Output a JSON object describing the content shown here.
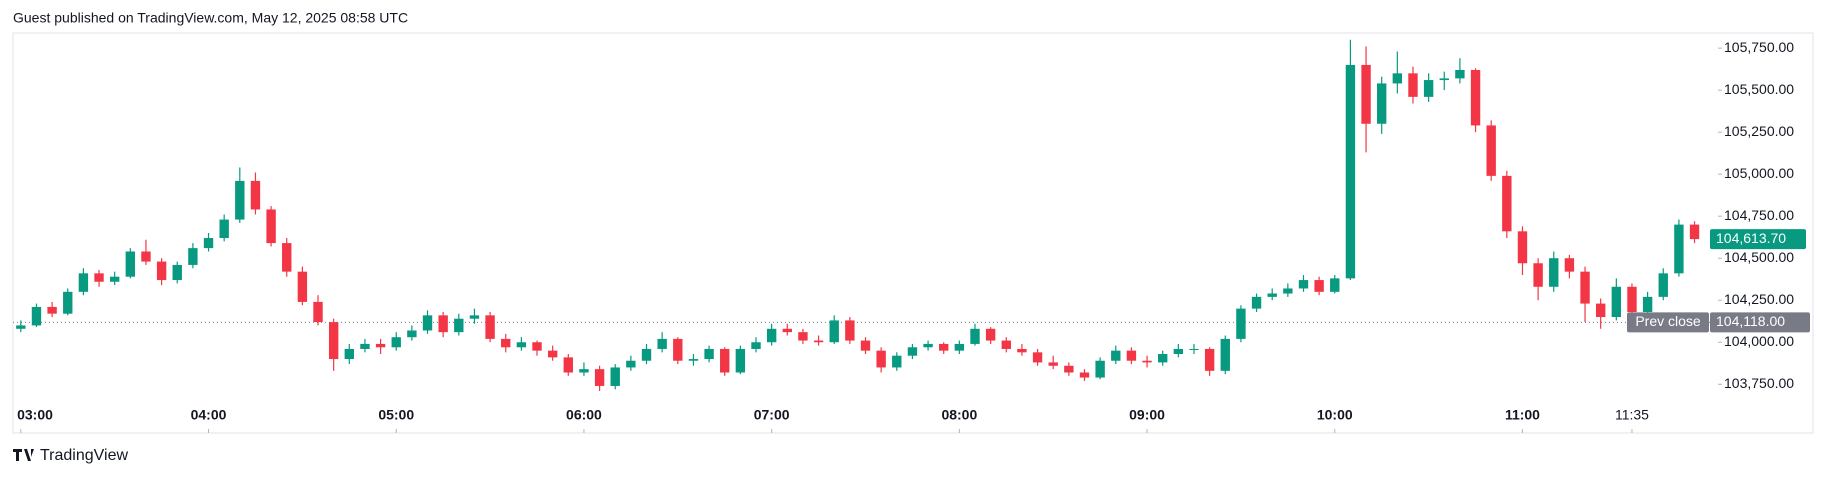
{
  "chart_data": {
    "type": "candlestick",
    "title": "Guest published on TradingView.com, May 12, 2025 08:58 UTC",
    "source": "TradingView",
    "up_color": "#089981",
    "down_color": "#f23645",
    "xlim": [
      -0.5,
      108.5
    ],
    "xticks": [
      {
        "value": 0,
        "label": "03:00"
      },
      {
        "value": 12,
        "label": "04:00"
      },
      {
        "value": 24,
        "label": "05:00"
      },
      {
        "value": 36,
        "label": "06:00"
      },
      {
        "value": 48,
        "label": "07:00"
      },
      {
        "value": 60,
        "label": "08:00"
      },
      {
        "value": 72,
        "label": "09:00"
      },
      {
        "value": 84,
        "label": "10:00"
      },
      {
        "value": 96,
        "label": "11:00"
      },
      {
        "value": 103,
        "label": "11:35"
      }
    ],
    "ylim": [
      103460,
      105840
    ],
    "yticks": [
      {
        "value": 103750,
        "label": "103,750.00"
      },
      {
        "value": 104000,
        "label": "104,000.00"
      },
      {
        "value": 104250,
        "label": "104,250.00"
      },
      {
        "value": 104500,
        "label": "104,500.00"
      },
      {
        "value": 104750,
        "label": "104,750.00"
      },
      {
        "value": 105000,
        "label": "105,000.00"
      },
      {
        "value": 105250,
        "label": "105,250.00"
      },
      {
        "value": 105500,
        "label": "105,500.00"
      },
      {
        "value": 105750,
        "label": "105,750.00"
      }
    ],
    "last_price": {
      "value": 104613.7,
      "label": "104,613.70",
      "color": "#089981"
    },
    "prev_close": {
      "name": "Prev close",
      "value": 104118,
      "label": "104,118.00",
      "color": "#787b86"
    },
    "candles": [
      [
        104080,
        104130,
        104060,
        104100
      ],
      [
        104100,
        104230,
        104090,
        104210
      ],
      [
        104210,
        104240,
        104150,
        104170
      ],
      [
        104170,
        104320,
        104160,
        104300
      ],
      [
        104300,
        104440,
        104280,
        104410
      ],
      [
        104410,
        104430,
        104330,
        104360
      ],
      [
        104360,
        104420,
        104340,
        104390
      ],
      [
        104390,
        104560,
        104380,
        104540
      ],
      [
        104540,
        104610,
        104460,
        104480
      ],
      [
        104480,
        104500,
        104340,
        104370
      ],
      [
        104370,
        104480,
        104350,
        104460
      ],
      [
        104460,
        104590,
        104440,
        104560
      ],
      [
        104560,
        104650,
        104540,
        104620
      ],
      [
        104620,
        104760,
        104600,
        104730
      ],
      [
        104730,
        105040,
        104710,
        104960
      ],
      [
        104960,
        105010,
        104760,
        104790
      ],
      [
        104790,
        104810,
        104570,
        104590
      ],
      [
        104590,
        104620,
        104390,
        104420
      ],
      [
        104420,
        104450,
        104220,
        104240
      ],
      [
        104240,
        104280,
        104100,
        104120
      ],
      [
        104120,
        104140,
        103830,
        103900
      ],
      [
        103900,
        103990,
        103870,
        103960
      ],
      [
        103960,
        104020,
        103940,
        103990
      ],
      [
        103990,
        104020,
        103930,
        103970
      ],
      [
        103970,
        104060,
        103950,
        104030
      ],
      [
        104030,
        104100,
        104010,
        104070
      ],
      [
        104070,
        104190,
        104050,
        104160
      ],
      [
        104160,
        104180,
        104030,
        104060
      ],
      [
        104060,
        104170,
        104040,
        104140
      ],
      [
        104140,
        104200,
        104110,
        104160
      ],
      [
        104160,
        104180,
        104000,
        104020
      ],
      [
        104020,
        104050,
        103940,
        103970
      ],
      [
        103970,
        104030,
        103950,
        104000
      ],
      [
        104000,
        104010,
        103920,
        103950
      ],
      [
        103950,
        103980,
        103890,
        103910
      ],
      [
        103910,
        103930,
        103800,
        103820
      ],
      [
        103820,
        103880,
        103800,
        103840
      ],
      [
        103840,
        103860,
        103710,
        103740
      ],
      [
        103740,
        103870,
        103720,
        103850
      ],
      [
        103850,
        103920,
        103830,
        103890
      ],
      [
        103890,
        103990,
        103870,
        103960
      ],
      [
        103960,
        104060,
        103940,
        104020
      ],
      [
        104020,
        104030,
        103870,
        103890
      ],
      [
        103890,
        103930,
        103860,
        103900
      ],
      [
        103900,
        103980,
        103880,
        103960
      ],
      [
        103960,
        103970,
        103800,
        103820
      ],
      [
        103820,
        103980,
        103810,
        103960
      ],
      [
        103960,
        104030,
        103940,
        104000
      ],
      [
        104000,
        104110,
        103980,
        104080
      ],
      [
        104080,
        104110,
        104040,
        104060
      ],
      [
        104060,
        104080,
        103990,
        104010
      ],
      [
        104010,
        104040,
        103980,
        104000
      ],
      [
        104000,
        104160,
        103990,
        104130
      ],
      [
        104130,
        104150,
        103990,
        104010
      ],
      [
        104010,
        104030,
        103930,
        103950
      ],
      [
        103950,
        103970,
        103820,
        103850
      ],
      [
        103850,
        103940,
        103830,
        103920
      ],
      [
        103920,
        103990,
        103900,
        103970
      ],
      [
        103970,
        104010,
        103950,
        103990
      ],
      [
        103990,
        104000,
        103930,
        103950
      ],
      [
        103950,
        104010,
        103930,
        103990
      ],
      [
        103990,
        104110,
        103980,
        104080
      ],
      [
        104080,
        104090,
        103990,
        104010
      ],
      [
        104010,
        104030,
        103940,
        103960
      ],
      [
        103960,
        103990,
        103920,
        103940
      ],
      [
        103940,
        103960,
        103860,
        103880
      ],
      [
        103880,
        103920,
        103840,
        103860
      ],
      [
        103860,
        103880,
        103800,
        103820
      ],
      [
        103820,
        103840,
        103770,
        103790
      ],
      [
        103790,
        103910,
        103780,
        103890
      ],
      [
        103890,
        103980,
        103870,
        103950
      ],
      [
        103950,
        103970,
        103870,
        103890
      ],
      [
        103890,
        103920,
        103850,
        103880
      ],
      [
        103880,
        103950,
        103860,
        103930
      ],
      [
        103930,
        103990,
        103910,
        103960
      ],
      [
        103960,
        103990,
        103930,
        103960
      ],
      [
        103960,
        103970,
        103800,
        103830
      ],
      [
        103830,
        104040,
        103810,
        104020
      ],
      [
        104020,
        104220,
        104000,
        104200
      ],
      [
        104200,
        104290,
        104180,
        104270
      ],
      [
        104270,
        104320,
        104250,
        104290
      ],
      [
        104290,
        104350,
        104270,
        104320
      ],
      [
        104320,
        104400,
        104300,
        104370
      ],
      [
        104370,
        104390,
        104280,
        104300
      ],
      [
        104300,
        104400,
        104290,
        104380
      ],
      [
        104380,
        105800,
        104370,
        105650
      ],
      [
        105650,
        105760,
        105130,
        105300
      ],
      [
        105300,
        105580,
        105240,
        105540
      ],
      [
        105540,
        105730,
        105480,
        105600
      ],
      [
        105600,
        105640,
        105420,
        105460
      ],
      [
        105460,
        105600,
        105430,
        105560
      ],
      [
        105560,
        105610,
        105500,
        105570
      ],
      [
        105570,
        105690,
        105540,
        105620
      ],
      [
        105620,
        105630,
        105250,
        105290
      ],
      [
        105290,
        105320,
        104960,
        104990
      ],
      [
        104990,
        105020,
        104620,
        104660
      ],
      [
        104660,
        104690,
        104400,
        104470
      ],
      [
        104470,
        104500,
        104250,
        104330
      ],
      [
        104330,
        104540,
        104300,
        104500
      ],
      [
        104500,
        104520,
        104380,
        104420
      ],
      [
        104420,
        104450,
        104120,
        104230
      ],
      [
        104230,
        104260,
        104080,
        104150
      ],
      [
        104150,
        104380,
        104130,
        104330
      ],
      [
        104330,
        104350,
        104150,
        104180
      ],
      [
        104180,
        104300,
        104160,
        104270
      ],
      [
        104270,
        104440,
        104250,
        104410
      ],
      [
        104410,
        104730,
        104390,
        104700
      ],
      [
        104700,
        104720,
        104590,
        104613.7
      ]
    ]
  }
}
